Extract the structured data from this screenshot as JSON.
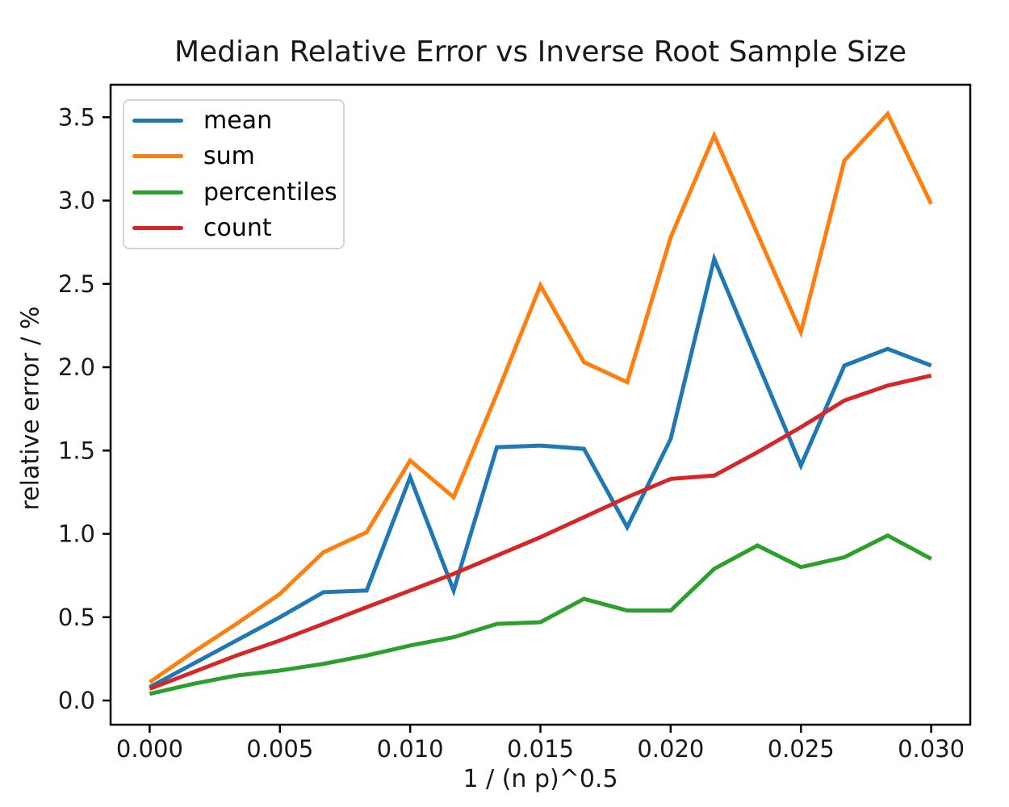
{
  "chart_data": {
    "type": "line",
    "title": "Median Relative Error vs Inverse Root Sample Size",
    "xlabel": "1 / (n p)^0.5",
    "ylabel": "relative error / %",
    "x": [
      0.0,
      0.00167,
      0.00333,
      0.005,
      0.00667,
      0.00833,
      0.01,
      0.01167,
      0.01333,
      0.015,
      0.01667,
      0.01833,
      0.02,
      0.02167,
      0.02333,
      0.025,
      0.02667,
      0.02833,
      0.03
    ],
    "series": [
      {
        "name": "mean",
        "color": "#1f77b4",
        "values": [
          0.08,
          0.22,
          0.36,
          0.5,
          0.65,
          0.66,
          1.34,
          0.66,
          1.52,
          1.53,
          1.51,
          1.04,
          1.57,
          2.65,
          2.03,
          1.41,
          2.01,
          2.11,
          2.01
        ]
      },
      {
        "name": "sum",
        "color": "#ff7f0e",
        "values": [
          0.11,
          0.29,
          0.46,
          0.64,
          0.89,
          1.01,
          1.44,
          1.22,
          1.84,
          2.49,
          2.03,
          1.91,
          2.78,
          3.39,
          2.8,
          2.21,
          3.24,
          3.52,
          2.98
        ]
      },
      {
        "name": "percentiles",
        "color": "#2ca02c",
        "values": [
          0.04,
          0.1,
          0.15,
          0.18,
          0.22,
          0.27,
          0.33,
          0.38,
          0.46,
          0.47,
          0.61,
          0.54,
          0.54,
          0.79,
          0.93,
          0.8,
          0.86,
          0.99,
          0.85
        ]
      },
      {
        "name": "count",
        "color": "#d62728",
        "values": [
          0.07,
          0.17,
          0.27,
          0.36,
          0.46,
          0.56,
          0.66,
          0.76,
          0.87,
          0.98,
          1.1,
          1.22,
          1.33,
          1.35,
          1.49,
          1.64,
          1.8,
          1.89,
          1.95
        ]
      }
    ],
    "xticks": {
      "values": [
        0.0,
        0.005,
        0.01,
        0.015,
        0.02,
        0.025,
        0.03
      ],
      "labels": [
        "0.000",
        "0.005",
        "0.010",
        "0.015",
        "0.020",
        "0.025",
        "0.030"
      ]
    },
    "yticks": {
      "values": [
        0.0,
        0.5,
        1.0,
        1.5,
        2.0,
        2.5,
        3.0,
        3.5
      ],
      "labels": [
        "0.0",
        "0.5",
        "1.0",
        "1.5",
        "2.0",
        "2.5",
        "3.0",
        "3.5"
      ]
    },
    "xlim": [
      -0.0015,
      0.0315
    ],
    "ylim": [
      -0.145,
      3.695
    ],
    "grid": false,
    "legend_position": "upper left",
    "axis_color": "#000000",
    "background": "#ffffff"
  }
}
